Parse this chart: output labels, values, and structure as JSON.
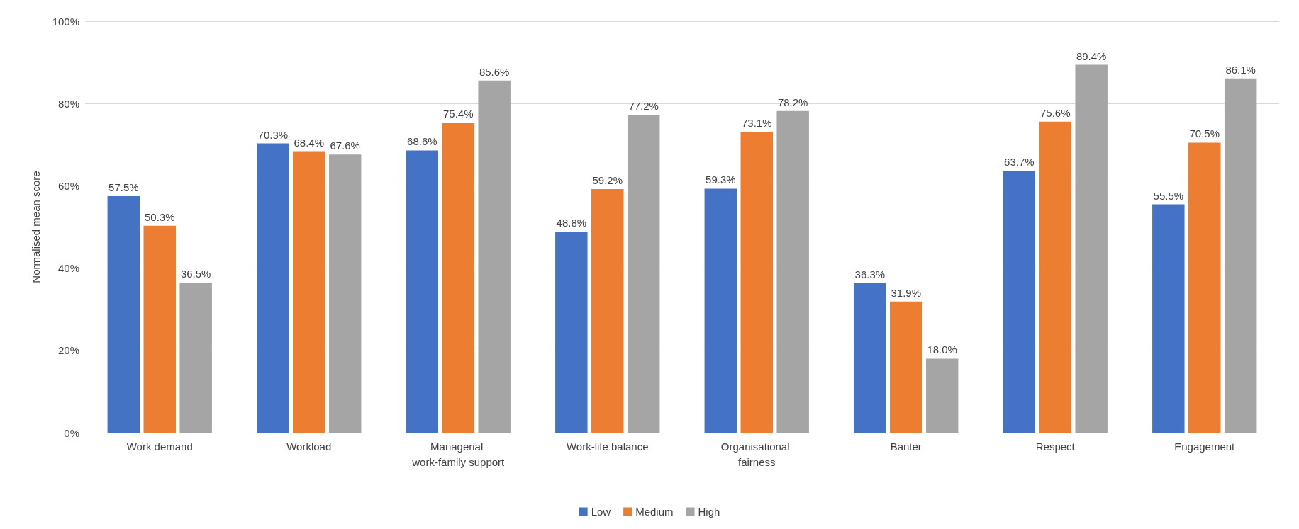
{
  "chart_data": {
    "type": "bar",
    "ylabel": "Normalised mean score",
    "categories": [
      "Work demand",
      "Workload",
      "Managerial work-family support",
      "Work-life balance",
      "Organisational fairness",
      "Banter",
      "Respect",
      "Engagement"
    ],
    "series": [
      {
        "name": "Low",
        "color": "#4472c4",
        "values": [
          57.5,
          70.3,
          68.6,
          48.8,
          59.3,
          36.3,
          63.7,
          55.5
        ],
        "value_labels": [
          "57.5%",
          "70.3%",
          "68.6%",
          "48.8%",
          "59.3%",
          "36.3%",
          "63.7%",
          "55.5%"
        ]
      },
      {
        "name": "Medium",
        "color": "#ed7d31",
        "values": [
          50.3,
          68.4,
          75.4,
          59.2,
          73.1,
          31.9,
          75.6,
          70.5
        ],
        "value_labels": [
          "50.3%",
          "68.4%",
          "75.4%",
          "59.2%",
          "73.1%",
          "31.9%",
          "75.6%",
          "70.5%"
        ]
      },
      {
        "name": "High",
        "color": "#a5a5a5",
        "values": [
          36.5,
          67.6,
          85.6,
          77.2,
          78.2,
          18.0,
          89.4,
          86.1
        ],
        "value_labels": [
          "36.5%",
          "67.6%",
          "85.6%",
          "77.2%",
          "78.2%",
          "18.0%",
          "89.4%",
          "86.1%"
        ]
      }
    ],
    "ylim": [
      0,
      100
    ],
    "yticks": [
      {
        "value": 0,
        "label": "0%"
      },
      {
        "value": 20,
        "label": "20%"
      },
      {
        "value": 40,
        "label": "40%"
      },
      {
        "value": 60,
        "label": "60%"
      },
      {
        "value": 80,
        "label": "80%"
      },
      {
        "value": 100,
        "label": "100%"
      }
    ],
    "grid": "y",
    "legend": "bottom"
  }
}
